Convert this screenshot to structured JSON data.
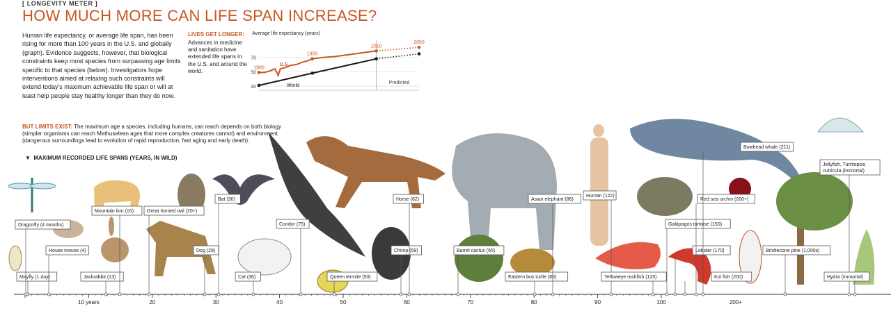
{
  "header": {
    "kicker": "[ LONGEVITY METER ]",
    "title": "HOW MUCH MORE CAN LIFE SPAN INCREASE?"
  },
  "intro": "Human life expectancy, or average life span, has been rising for more than 100 years in the U.S. and globally (graph). Evidence suggests, however, that biological constraints keep most species from surpassing age limits specific to that species (below). Investigators hope interventions aimed at relaxing such constraints will extend today's maximum achievable life span or will at least help people stay healthy longer than they do now.",
  "sidebar": {
    "heading": "LIVES GET LONGER:",
    "text": "Advances in medicine and sanitation have extended life spans in the U.S. and around the world."
  },
  "limits": {
    "lead": "BUT LIMITS EXIST:",
    "text": "The maximum age a species, including humans, can reach depends on both biology (simpler organisms can reach Methuselean ages that more complex creatures cannot) and environment (dangerous surroundings lead to evolution of rapid reproduction, fast aging and early death)."
  },
  "section_heading": "MAXIMUM RECORDED LIFE SPANS (YEARS, IN WILD)",
  "colors": {
    "accent": "#c8561f",
    "world": "#1a1a1a",
    "box": "#555555"
  },
  "chart_data": [
    {
      "type": "line",
      "title": "Average life expectancy (years)",
      "ylim": [
        30,
        90
      ],
      "yticks": [
        30,
        50,
        70
      ],
      "predicted_label": "Predicted",
      "series": [
        {
          "name": "U.S.",
          "color": "#c8561f",
          "x": [
            1900,
            1905,
            1910,
            1915,
            1918,
            1920,
            1925,
            1930,
            1935,
            1940,
            1945,
            1950,
            1960,
            1970,
            1980,
            1990,
            2000,
            2010,
            2050
          ],
          "y": [
            49,
            49,
            51,
            54,
            45,
            54,
            56,
            59,
            60,
            63,
            65,
            68,
            70,
            71,
            73,
            75,
            77,
            79,
            84
          ],
          "labels": [
            {
              "x": 1900,
              "text": "1900"
            },
            {
              "x": 1950,
              "text": "1950"
            },
            {
              "x": 2010,
              "text": "2010"
            },
            {
              "x": 2050,
              "text": "2050"
            }
          ]
        },
        {
          "name": "World",
          "color": "#1a1a1a",
          "x": [
            1900,
            1950,
            2010,
            2050
          ],
          "y": [
            31,
            48,
            68,
            75
          ],
          "labels": []
        }
      ]
    },
    {
      "type": "scatter",
      "title": "MAXIMUM RECORDED LIFE SPANS (YEARS, IN WILD)",
      "xlim": [
        0,
        100
      ],
      "xticks": [
        10,
        20,
        30,
        40,
        50,
        60,
        70,
        80,
        90,
        100
      ],
      "xtick_labels": [
        "10 years",
        "20",
        "30",
        "40",
        "50",
        "60",
        "70",
        "80",
        "90",
        "100"
      ],
      "beyond_label": "200+",
      "species": [
        {
          "label": "Mayfly (1 day)",
          "x": 0.003
        },
        {
          "label": "Dragonfly (4 months)",
          "x": 0.33
        },
        {
          "label": "House mouse (4)",
          "x": 4
        },
        {
          "label": "Jackrabbit (13)",
          "x": 13
        },
        {
          "label": "Mountain lion (15)",
          "x": 15
        },
        {
          "label": "Great horned owl (20+)",
          "x": 20
        },
        {
          "label": "Dog (29)",
          "x": 29
        },
        {
          "label": "Bat (30)",
          "x": 30
        },
        {
          "label": "Cat (36)",
          "x": 36
        },
        {
          "label": "Condor (75)",
          "x": 75
        },
        {
          "label": "Queen termite (50)",
          "x": 50
        },
        {
          "label": "Chimp (59)",
          "x": 59
        },
        {
          "label": "Horse (62)",
          "x": 62
        },
        {
          "label": "Barrel cactus (65)",
          "x": 65
        },
        {
          "label": "Eastern box turtle (80)",
          "x": 80
        },
        {
          "label": "Asian elephant (86)",
          "x": 86
        },
        {
          "label": "Human (122)",
          "x": 122
        },
        {
          "label": "Yelloweye rockfish (120)",
          "x": 120
        },
        {
          "label": "Galápagos tortoise (150)",
          "x": 150
        },
        {
          "label": "Lobster (170)",
          "x": 170
        },
        {
          "label": "Koi fish (200)",
          "x": 200
        },
        {
          "label": "Red sea urchin (200+)",
          "x": 200
        },
        {
          "label": "Bowhead whale (211)",
          "x": 211
        },
        {
          "label": "Bristlecone pine (1,000s)",
          "x": 1000
        },
        {
          "label": "Jellyfish, Turritopsis nutricula (immortal)",
          "x": null
        },
        {
          "label": "Hydra (immortal)",
          "x": null
        }
      ]
    }
  ]
}
